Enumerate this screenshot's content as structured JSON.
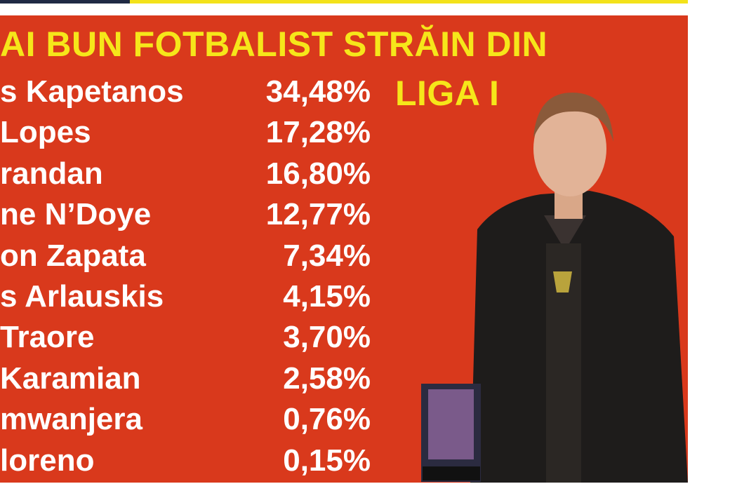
{
  "header": {
    "title_line1": "AI BUN FOTBALIST STRĂIN DIN",
    "title_line2": "LIGA I"
  },
  "table": {
    "rows": [
      [
        "s Kapetanos",
        "34,48%"
      ],
      [
        "Lopes",
        "17,28%"
      ],
      [
        "randan",
        "16,80%"
      ],
      [
        "ne N’Doye",
        "12,77%"
      ],
      [
        "on Zapata",
        "7,34%"
      ],
      [
        "s Arlauskis",
        "4,15%"
      ],
      [
        "Traore",
        "3,70%"
      ],
      [
        "Karamian",
        "2,58%"
      ],
      [
        "mwanjera",
        "0,76%"
      ],
      [
        "loreno",
        "0,15%"
      ]
    ]
  }
}
